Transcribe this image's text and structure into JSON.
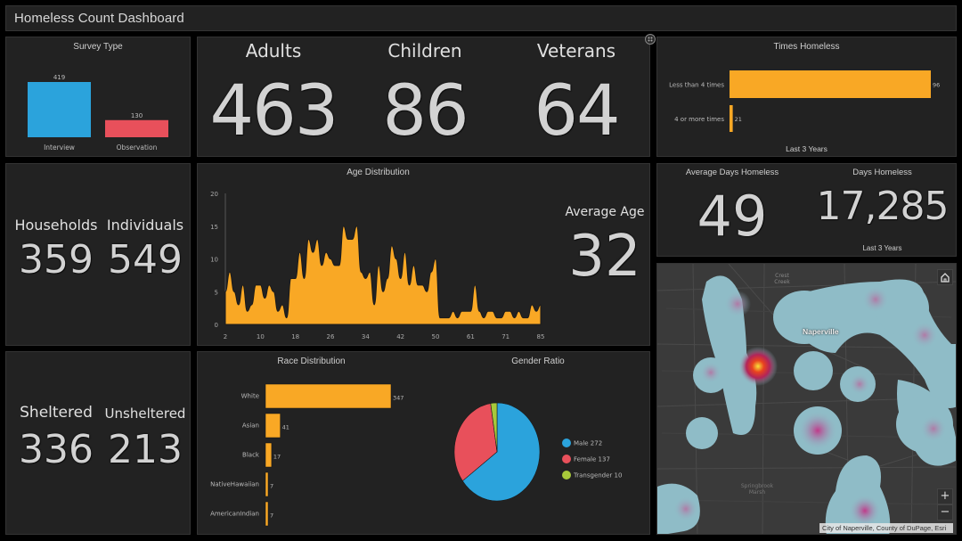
{
  "header": {
    "title": "Homeless Count Dashboard"
  },
  "survey_type": {
    "title": "Survey Type",
    "chart_data": {
      "type": "bar",
      "title": "Survey Type",
      "categories": [
        "Interview",
        "Observation"
      ],
      "values": [
        419,
        130
      ],
      "colors": [
        "#2ba3dc",
        "#e8505b"
      ]
    }
  },
  "people": {
    "items": [
      {
        "label": "Adults",
        "value": "463"
      },
      {
        "label": "Children",
        "value": "86"
      },
      {
        "label": "Veterans",
        "value": "64"
      }
    ]
  },
  "times_homeless": {
    "title": "Times Homeless",
    "footer": "Last 3 Years",
    "chart_data": {
      "type": "bar",
      "orientation": "horizontal",
      "title": "Times Homeless",
      "categories": [
        "Less than 4 times",
        "4 or more times"
      ],
      "values": [
        96,
        21
      ],
      "color": "#f9a825"
    }
  },
  "households": {
    "items": [
      {
        "label": "Households",
        "value": "359"
      },
      {
        "label": "Individuals",
        "value": "549"
      }
    ]
  },
  "age": {
    "title": "Age Distribution",
    "avg_label": "Average Age",
    "avg_value": "32",
    "chart_data": {
      "type": "area",
      "title": "Age Distribution",
      "xlabel": "",
      "ylabel": "",
      "ylim": [
        0,
        20
      ],
      "yticks": [
        0,
        5,
        10,
        15,
        20
      ],
      "xtick_labels": [
        "2",
        "10",
        "18",
        "26",
        "34",
        "42",
        "50",
        "61",
        "71",
        "85"
      ],
      "color": "#f9a825",
      "values": [
        5,
        8,
        5,
        3,
        6,
        2,
        3,
        6,
        6,
        4,
        6,
        5,
        2,
        3,
        1,
        7,
        7,
        11,
        7,
        13,
        11,
        13,
        9,
        11,
        10,
        9,
        9,
        15,
        13,
        13,
        15,
        8,
        7,
        8,
        3,
        9,
        5,
        7,
        12,
        10,
        7,
        11,
        6,
        9,
        6,
        6,
        5,
        8,
        10,
        1,
        1,
        1,
        2,
        1,
        2,
        2,
        2,
        6,
        2,
        1,
        2,
        2,
        1,
        1,
        2,
        2,
        1,
        2,
        1,
        1,
        3,
        2,
        3
      ]
    }
  },
  "days_homeless": {
    "avg_label": "Average Days Homeless",
    "avg_value": "49",
    "total_label": "Days Homeless",
    "total_value": "17,285",
    "footer": "Last 3 Years"
  },
  "sheltered": {
    "items": [
      {
        "label": "Sheltered",
        "value": "336"
      },
      {
        "label": "Unsheltered",
        "value": "213"
      }
    ]
  },
  "race": {
    "title": "Race Distribution",
    "chart_data": {
      "type": "bar",
      "orientation": "horizontal",
      "title": "Race Distribution",
      "categories": [
        "White",
        "Asian",
        "Black",
        "NativeHawaiian",
        "AmericanIndian"
      ],
      "values": [
        347,
        41,
        17,
        7,
        7
      ],
      "color": "#f9a825"
    }
  },
  "gender": {
    "title": "Gender Ratio",
    "chart_data": {
      "type": "pie",
      "title": "Gender Ratio",
      "legend": "right",
      "slices": [
        {
          "label": "Male",
          "value": 272,
          "color": "#2ba3dc"
        },
        {
          "label": "Female",
          "value": 137,
          "color": "#e8505b"
        },
        {
          "label": "Transgender",
          "value": 10,
          "color": "#a8c93a"
        }
      ]
    }
  },
  "map": {
    "place_label": "Naperville",
    "minor_labels": [
      "Crest Creek",
      "Springbrook Marsh"
    ],
    "attribution": "City of Naperville, County of DuPage, Esri",
    "zoom_in": "+",
    "zoom_out": "−",
    "home_icon": "home-icon",
    "panel_icon": "expand-icon"
  }
}
